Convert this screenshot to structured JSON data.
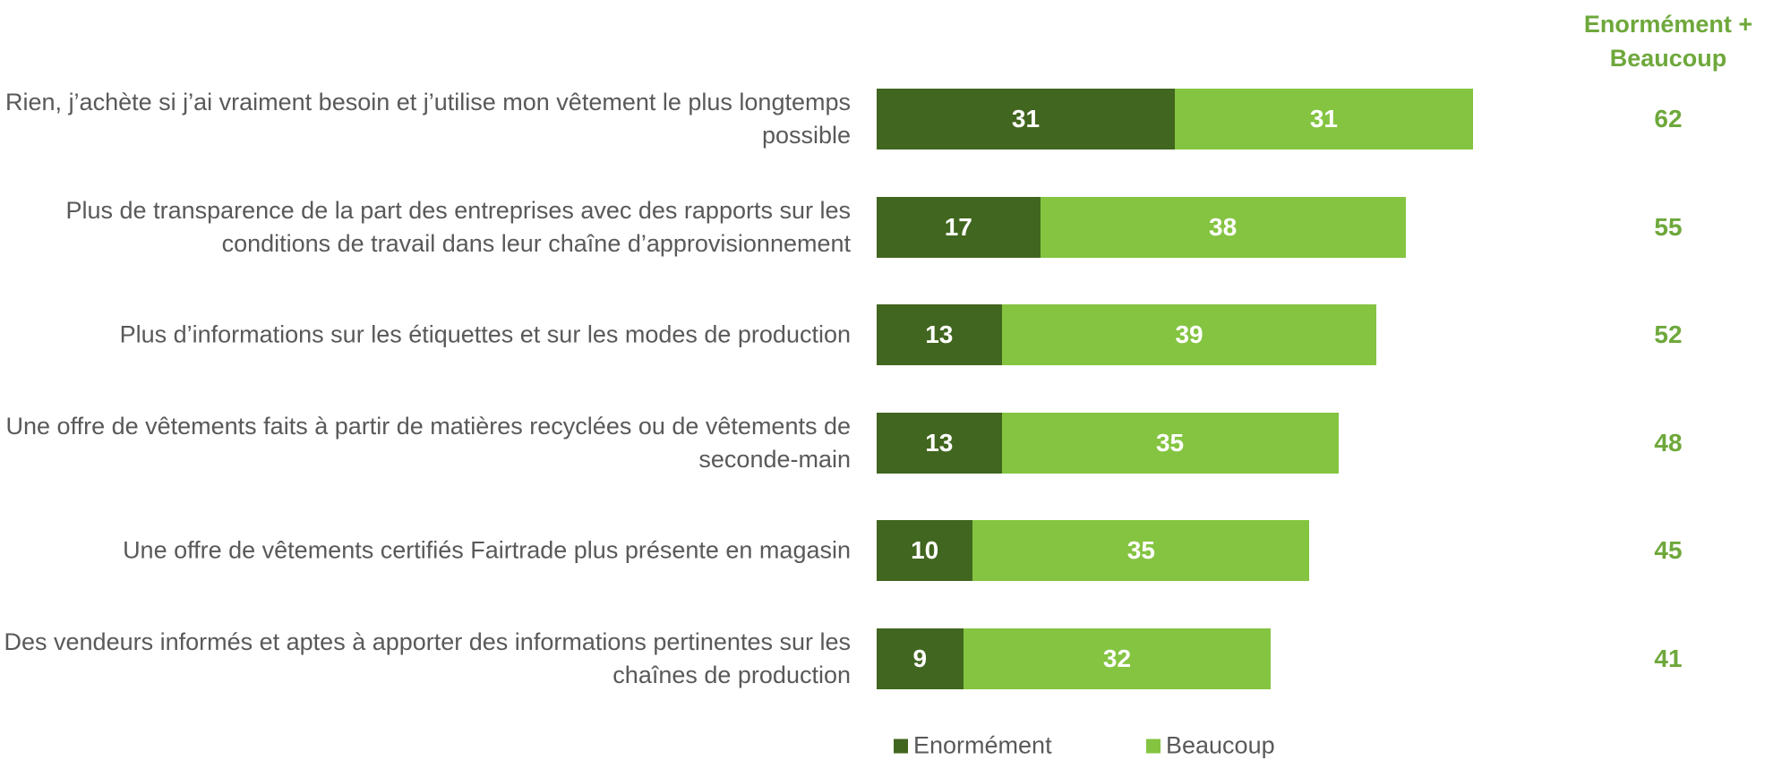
{
  "chart_data": {
    "type": "stacked_bar_horizontal",
    "categories": [
      "Rien, j’achète si j’ai vraiment besoin et j’utilise mon vêtement le plus longtemps possible",
      "Plus de transparence de la part des entreprises avec des rapports sur les conditions de travail dans leur chaîne d’approvisionnement",
      "Plus d’informations sur les étiquettes et sur les modes de production",
      "Une offre de vêtements faits à partir de matières recyclées ou de vêtements de seconde-main",
      "Une offre de vêtements certifiés Fairtrade plus présente en magasin",
      "Des vendeurs informés et aptes à apporter des informations pertinentes sur les chaînes de production"
    ],
    "series": [
      {
        "name": "Enormément",
        "color": "#41661f",
        "values": [
          31,
          17,
          13,
          13,
          10,
          9
        ]
      },
      {
        "name": "Beaucoup",
        "color": "#84c441",
        "values": [
          31,
          38,
          39,
          35,
          35,
          32
        ]
      }
    ],
    "totals_title": "Enormément + Beaucoup",
    "totals": [
      62,
      55,
      52,
      48,
      45,
      41
    ],
    "totals_color": "#6ea83b"
  }
}
